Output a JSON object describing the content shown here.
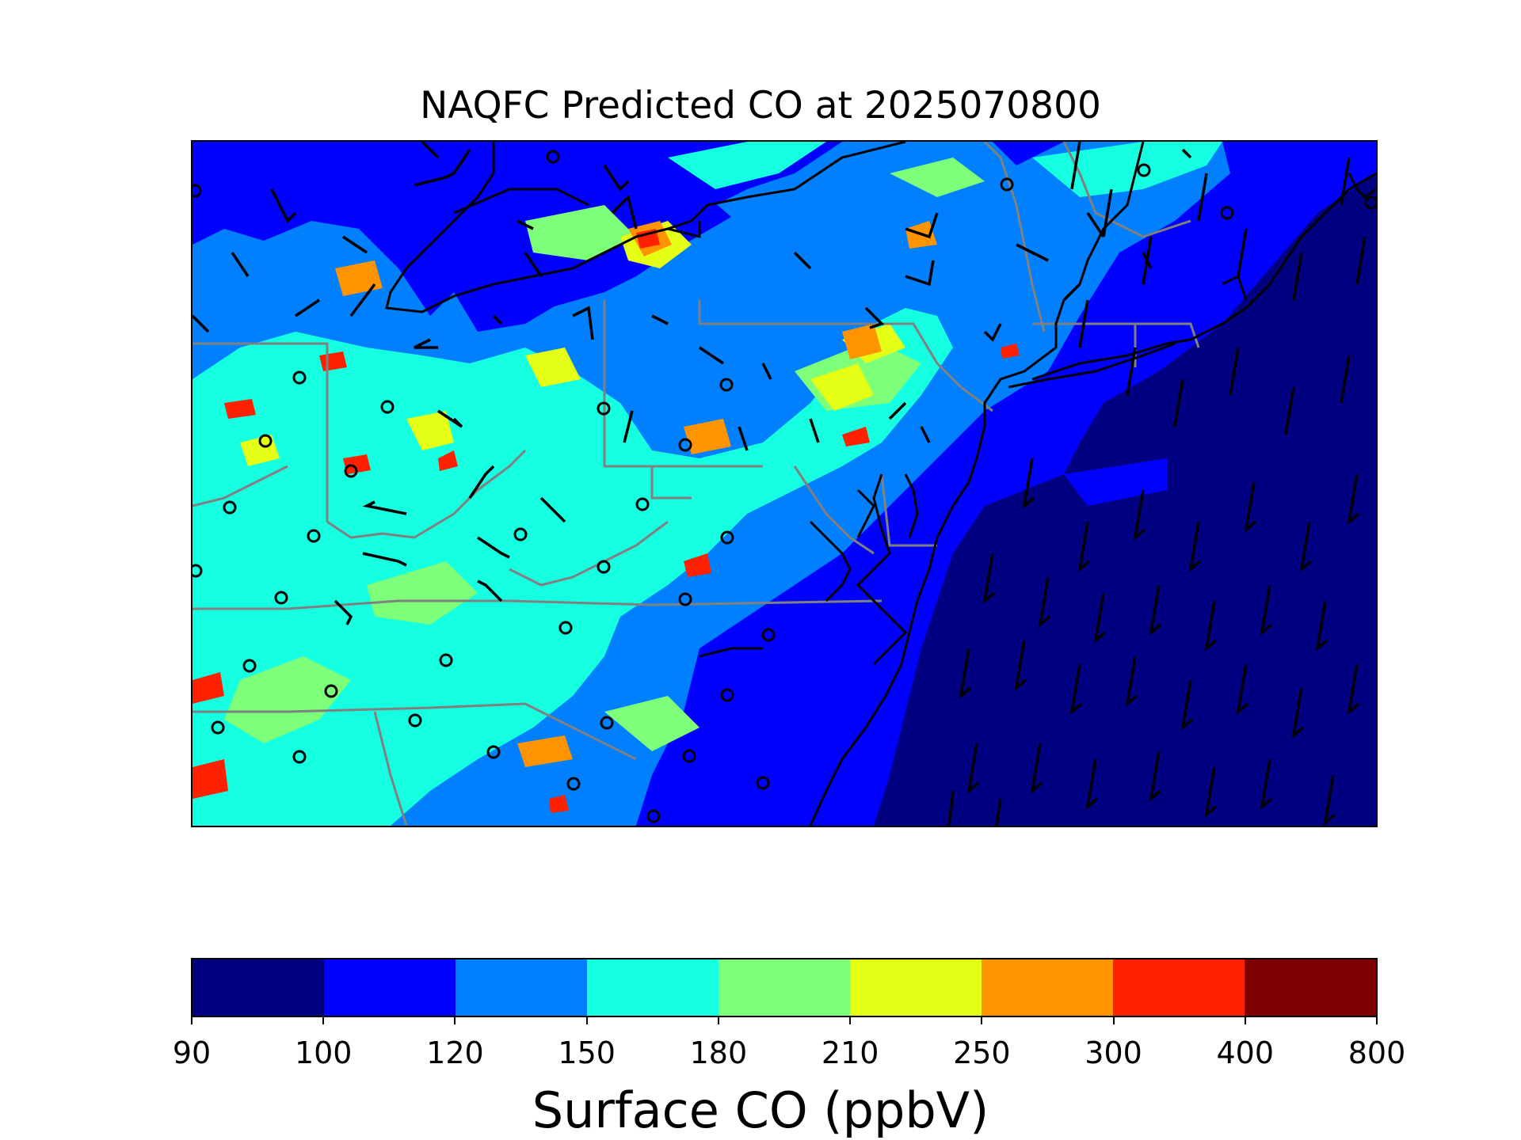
{
  "title": "NAQFC Predicted CO at 2025070800",
  "colorbar": {
    "label": "Surface CO (ppbV)",
    "ticks": [
      "90",
      "100",
      "120",
      "150",
      "180",
      "210",
      "250",
      "300",
      "400",
      "800"
    ],
    "colors": [
      "#000080",
      "#0000ff",
      "#0080ff",
      "#15ffe1",
      "#7dff7a",
      "#e4ff13",
      "#ff9400",
      "#ff2000",
      "#7f0000"
    ]
  },
  "map": {
    "variable": "Surface CO",
    "units": "ppbV",
    "overlays": [
      "coastline",
      "state-boundaries",
      "wind-barbs",
      "station-markers"
    ]
  }
}
